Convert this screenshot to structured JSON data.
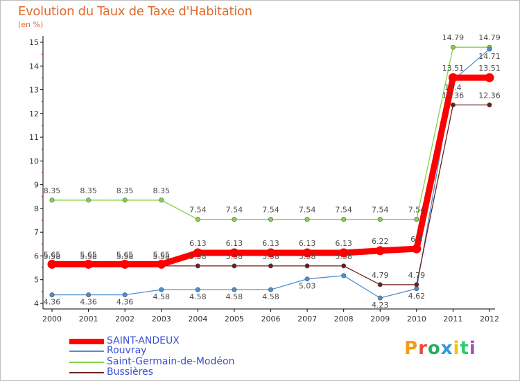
{
  "header": {
    "title": "Evolution du Taux de Taxe d'Habitation",
    "subtitle": "(en %)"
  },
  "logo": {
    "letters": [
      "P",
      "r",
      "o",
      "x",
      "i",
      "t",
      "i"
    ],
    "colors": [
      "#f39c12",
      "#e74c3c",
      "#27ae60",
      "#3498db",
      "#f1c40f",
      "#2ecc71",
      "#9b59b6"
    ]
  },
  "chart_data": {
    "type": "line",
    "title": "Evolution du Taux de Taxe d'Habitation",
    "ylabel": "(en %)",
    "x": [
      "2000",
      "2001",
      "2002",
      "2003",
      "2004",
      "2005",
      "2006",
      "2007",
      "2008",
      "2009",
      "2010",
      "2011",
      "2012"
    ],
    "ylim": [
      4,
      15
    ],
    "yticks": [
      "4",
      "5",
      "6",
      "7",
      "8",
      "9",
      "10",
      "11",
      "12",
      "13",
      "14",
      "15"
    ],
    "grid": false,
    "legend_position": "bottom-left",
    "series": [
      {
        "name": "SAINT-ANDEUX",
        "color": "#ff0000",
        "values": [
          5.65,
          5.65,
          5.65,
          5.65,
          6.13,
          6.13,
          6.13,
          6.13,
          6.13,
          6.22,
          6.3,
          13.51,
          13.51
        ],
        "labels": [
          "5.65",
          "5.65",
          "5.65",
          "5.65",
          "6.13",
          "6.13",
          "6.13",
          "6.13",
          "6.13",
          "6.22",
          "6.3",
          "13.51",
          "13.51"
        ]
      },
      {
        "name": "Rouvray",
        "color": "#4d8fce",
        "values": [
          4.36,
          4.36,
          4.36,
          4.58,
          4.58,
          4.58,
          4.58,
          5.03,
          5.17,
          4.23,
          4.62,
          13.4,
          14.71
        ],
        "labels": [
          "4.36",
          "4.36",
          "4.36",
          "4.58",
          "4.58",
          "4.58",
          "4.58",
          "5.03",
          "",
          "4.23",
          "4.62",
          "13.4",
          "14.71"
        ]
      },
      {
        "name": "Saint-Germain-de-Modéon",
        "color": "#84d24a",
        "values": [
          8.35,
          8.35,
          8.35,
          8.35,
          7.54,
          7.54,
          7.54,
          7.54,
          7.54,
          7.54,
          7.54,
          14.79,
          14.79
        ],
        "labels": [
          "8.35",
          "8.35",
          "8.35",
          "8.35",
          "7.54",
          "7.54",
          "7.54",
          "7.54",
          "7.54",
          "7.54",
          "7.54",
          "14.79",
          "14.79"
        ]
      },
      {
        "name": "Bussières",
        "color": "#6b1f1f",
        "values": [
          5.58,
          5.58,
          5.58,
          5.58,
          5.58,
          5.58,
          5.58,
          5.58,
          5.58,
          4.79,
          4.79,
          12.36,
          12.36
        ],
        "labels": [
          "5.58",
          "5.58",
          "5.58",
          "5.58",
          "5.58",
          "5.58",
          "5.58",
          "5.58",
          "5.58",
          "4.79",
          "4.79",
          "12.36",
          "12.36"
        ]
      }
    ]
  }
}
